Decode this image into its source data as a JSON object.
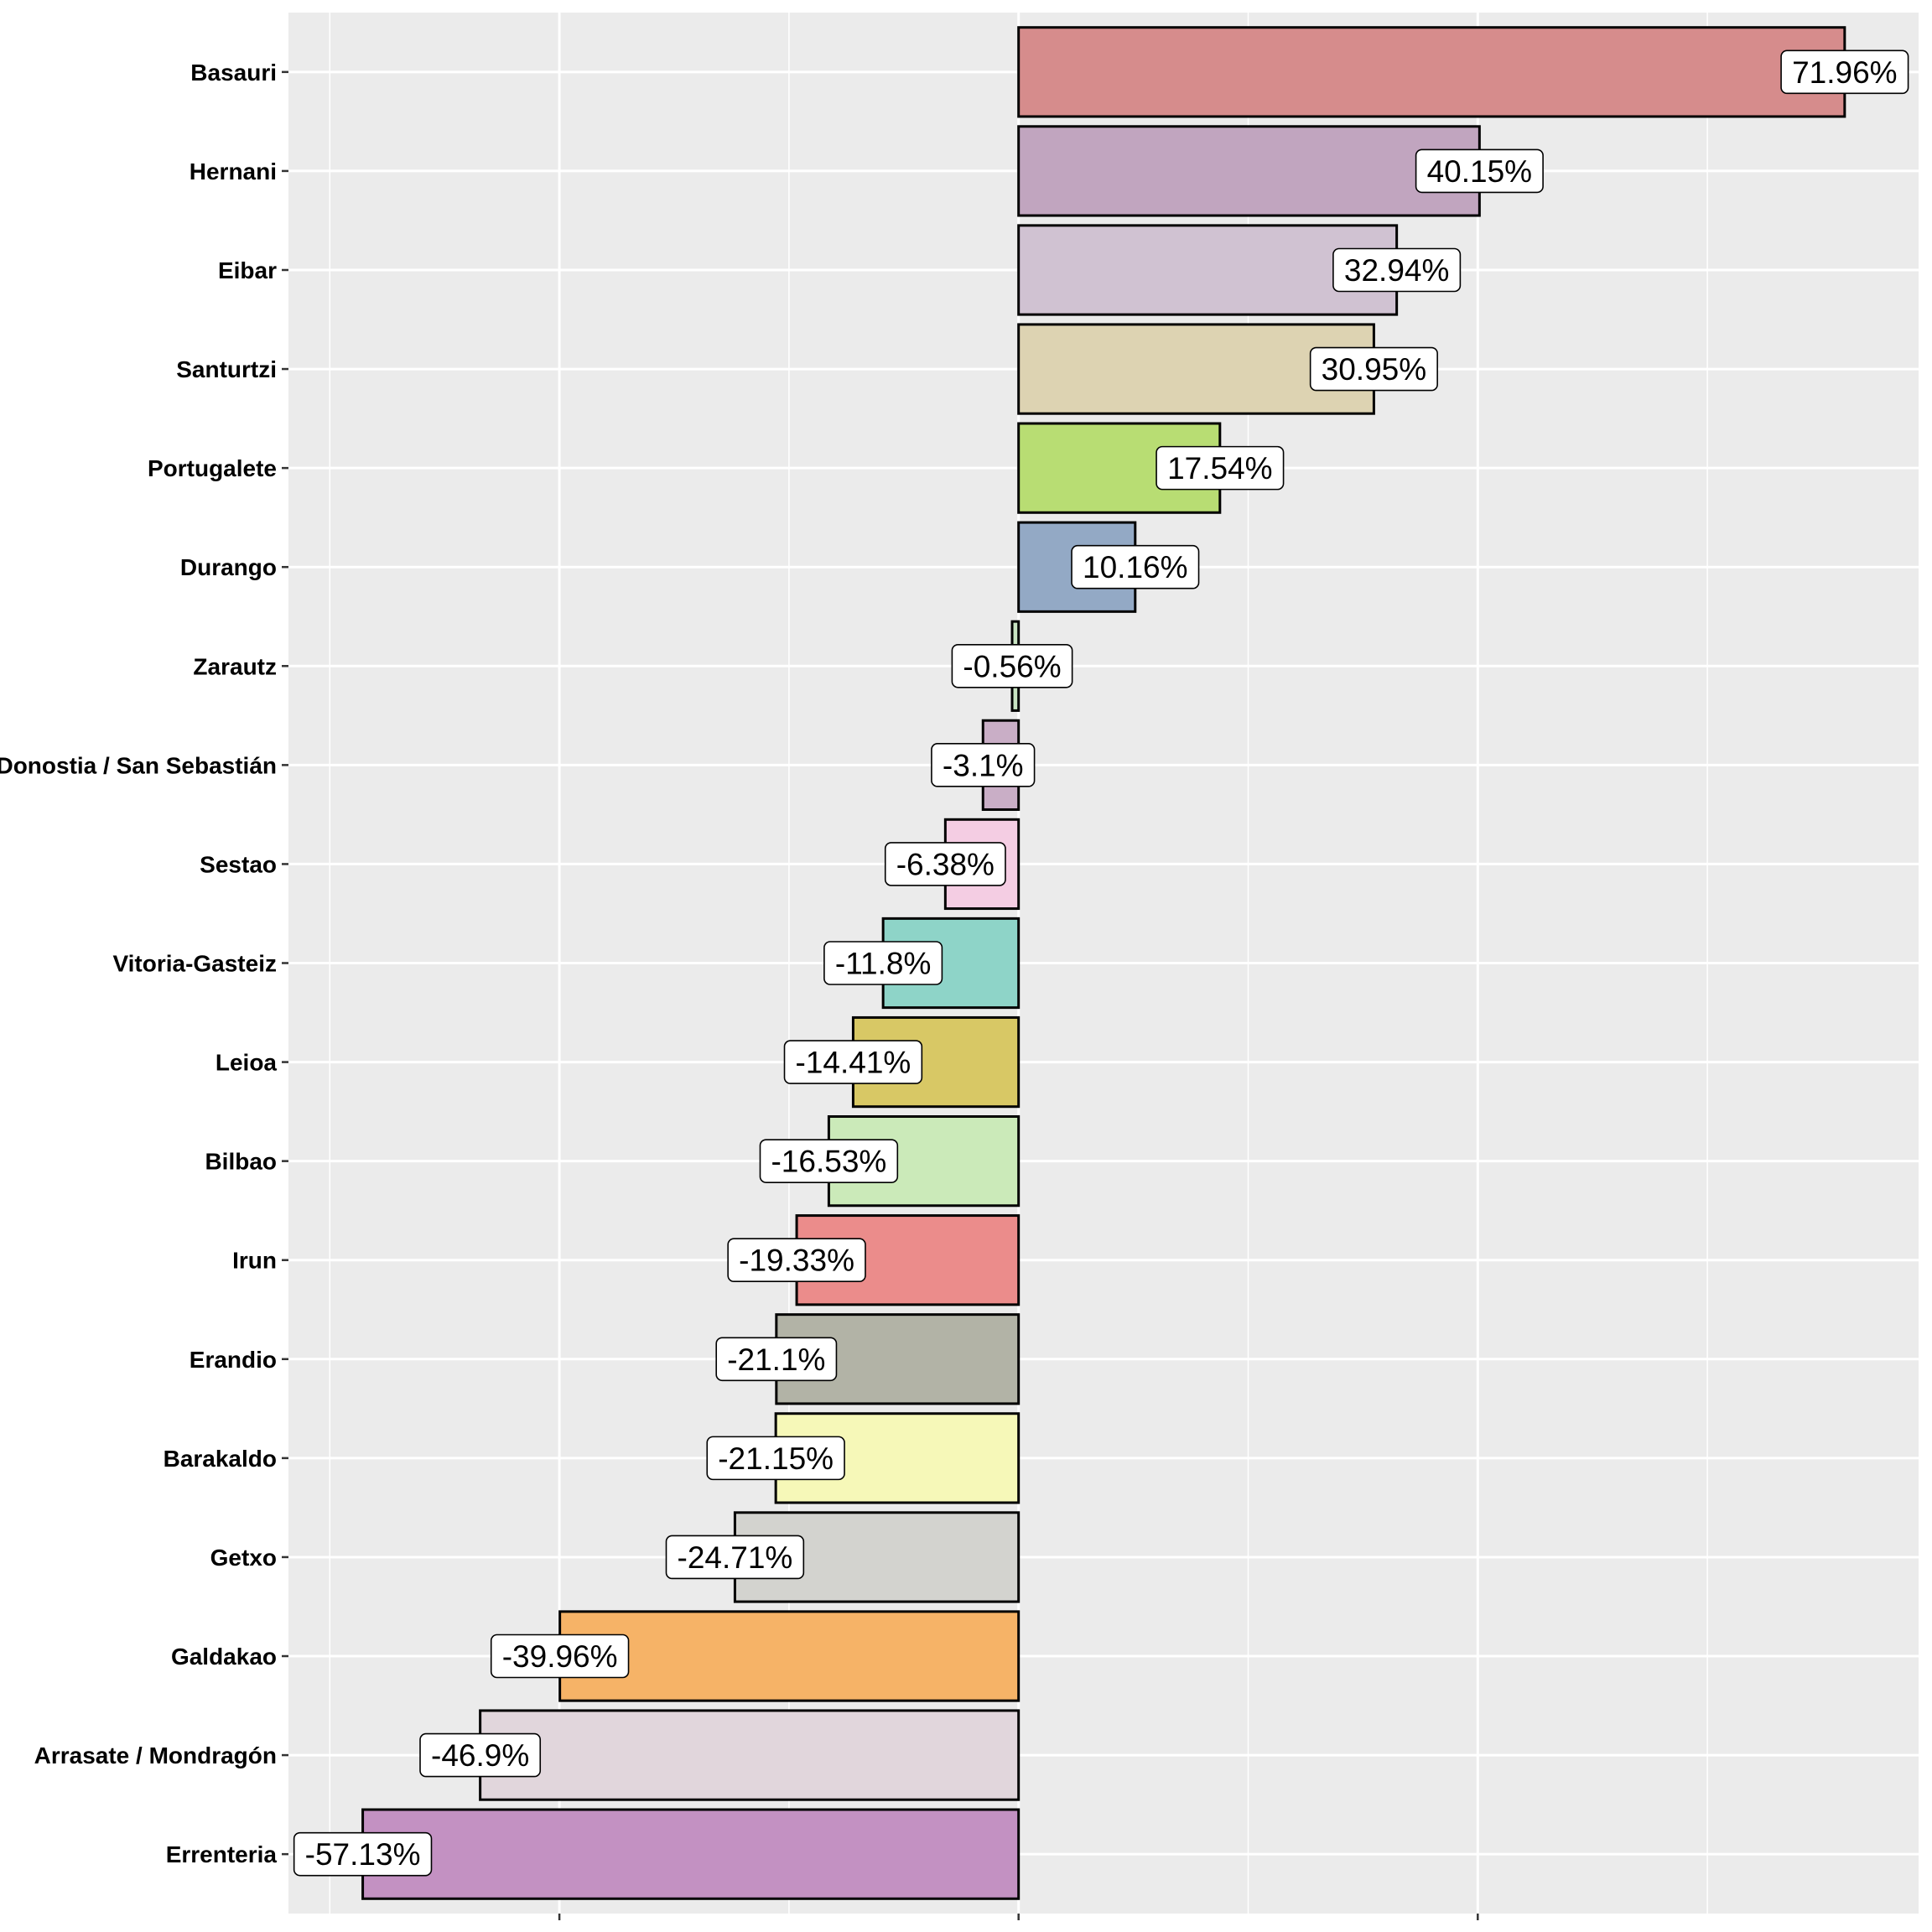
{
  "chart_data": {
    "type": "bar",
    "orientation": "horizontal",
    "title": "",
    "xlabel": "",
    "ylabel": "",
    "xlim": [
      -63.6,
      78.4
    ],
    "x_major_ticks": [
      -40,
      0,
      40
    ],
    "x_minor_gridlines": [
      -60,
      -20,
      20,
      60
    ],
    "x_tick_labels_shown": false,
    "grid": true,
    "legend": "none",
    "categories": [
      "Basauri",
      "Hernani",
      "Eibar",
      "Santurtzi",
      "Portugalete",
      "Durango",
      "Zarautz",
      "Donostia / San Sebastián",
      "Sestao",
      "Vitoria-Gasteiz",
      "Leioa",
      "Bilbao",
      "Irun",
      "Erandio",
      "Barakaldo",
      "Getxo",
      "Galdakao",
      "Arrasate / Mondragón",
      "Errenteria"
    ],
    "values": [
      71.96,
      40.15,
      32.94,
      30.95,
      17.54,
      10.16,
      -0.56,
      -3.1,
      -6.38,
      -11.8,
      -14.41,
      -16.53,
      -19.33,
      -21.1,
      -21.15,
      -24.71,
      -39.96,
      -46.9,
      -57.13
    ],
    "labels": [
      "71.96%",
      "40.15%",
      "32.94%",
      "30.95%",
      "17.54%",
      "10.16%",
      "-0.56%",
      "-3.1%",
      "-6.38%",
      "-11.8%",
      "-14.41%",
      "-16.53%",
      "-19.33%",
      "-21.1%",
      "-21.15%",
      "-24.71%",
      "-39.96%",
      "-46.9%",
      "-57.13%"
    ],
    "colors": [
      "#D68C8C",
      "#C1A5BF",
      "#D0C2D2",
      "#DDD3B2",
      "#B8DD73",
      "#93A9C5",
      "#C8E3C2",
      "#C9AEC6",
      "#F4CDE3",
      "#8ED4C8",
      "#D8C865",
      "#CBEAB9",
      "#EB8C8B",
      "#B2B3A6",
      "#F6F8B8",
      "#D3D3CF",
      "#F6B367",
      "#E1D6DC",
      "#C391C2"
    ],
    "panel_background": "#EBEBEB",
    "gridline_color": "#FFFFFF",
    "bar_outline": "#000000"
  }
}
